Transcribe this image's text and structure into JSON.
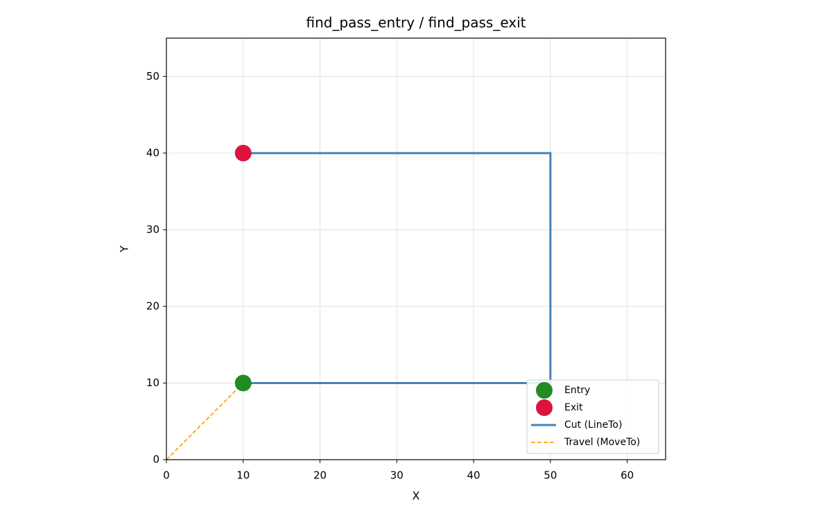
{
  "chart_data": {
    "type": "line",
    "title": "find_pass_entry / find_pass_exit",
    "x_label": "X",
    "y_label": "Y",
    "xlim": [
      0,
      65
    ],
    "xticks": [
      0,
      10,
      20,
      30,
      40,
      50,
      60
    ],
    "ylim": [
      0,
      55
    ],
    "yticks": [
      0,
      10,
      20,
      30,
      40,
      50
    ],
    "grid": true,
    "legend": "lower right",
    "series": [
      {
        "name": "Entry",
        "kind": "scatter",
        "color": "#228b22",
        "x": [
          10
        ],
        "values": [
          10
        ]
      },
      {
        "name": "Exit",
        "kind": "scatter",
        "color": "#dc143c",
        "x": [
          10
        ],
        "values": [
          40
        ]
      },
      {
        "name": "Cut (LineTo)",
        "kind": "line",
        "linestyle": "solid",
        "color": "#4682b4",
        "x": [
          10,
          50,
          50,
          10
        ],
        "values": [
          10,
          10,
          40,
          40
        ]
      },
      {
        "name": "Travel (MoveTo)",
        "kind": "line",
        "linestyle": "dashed",
        "color": "#ffa500",
        "x": [
          0,
          10
        ],
        "values": [
          0,
          10
        ]
      }
    ]
  }
}
